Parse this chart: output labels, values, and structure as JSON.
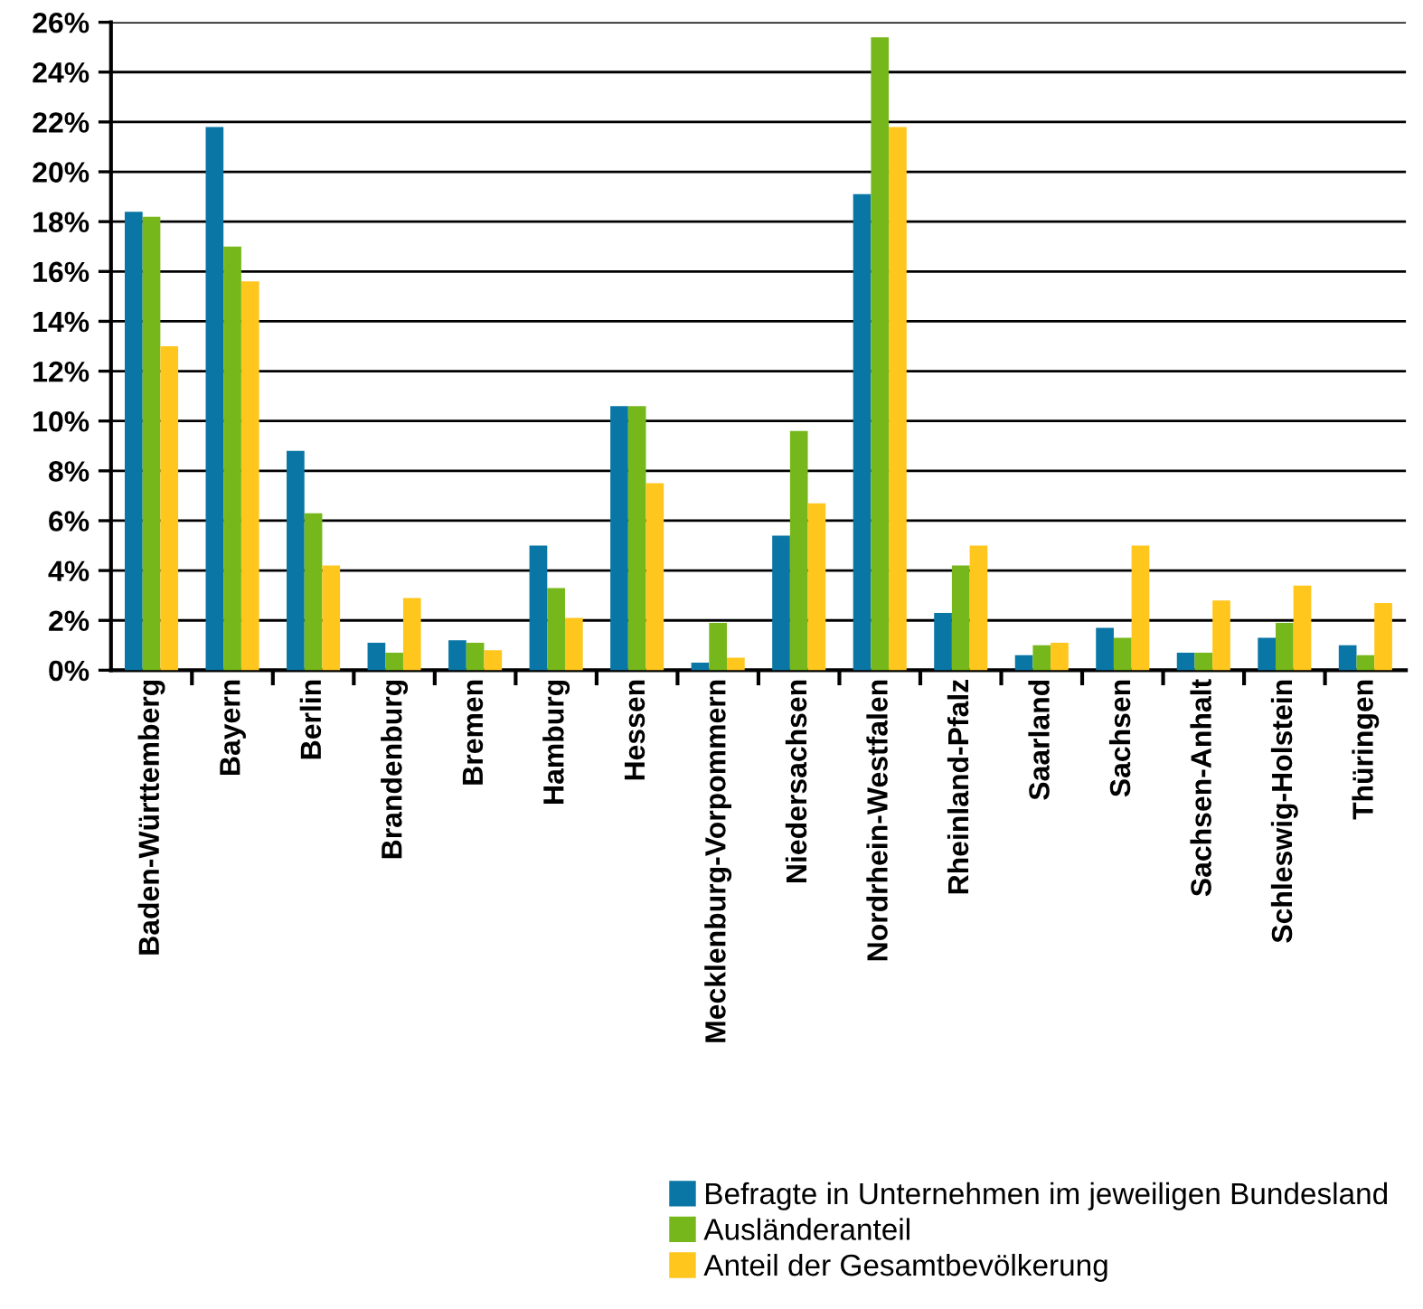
{
  "chart_data": {
    "type": "bar",
    "categories": [
      "Baden-Württemberg",
      "Bayern",
      "Berlin",
      "Brandenburg",
      "Bremen",
      "Hamburg",
      "Hessen",
      "Mecklenburg-Vorpommern",
      "Niedersachsen",
      "Nordrhein-Westfalen",
      "Rheinland-Pfalz",
      "Saarland",
      "Sachsen",
      "Sachsen-Anhalt",
      "Schleswig-Holstein",
      "Thüringen"
    ],
    "series": [
      {
        "name": "Befragte in Unternehmen im jeweiligen Bundesland",
        "color": "#0a76a5",
        "values": [
          18.4,
          21.8,
          8.8,
          1.1,
          1.2,
          5.0,
          10.6,
          0.3,
          5.4,
          19.1,
          2.3,
          0.6,
          1.7,
          0.7,
          1.3,
          1.0
        ]
      },
      {
        "name": "Ausländeranteil",
        "color": "#76b81c",
        "values": [
          18.2,
          17.0,
          6.3,
          0.7,
          1.1,
          3.3,
          10.6,
          1.9,
          9.6,
          25.4,
          4.2,
          1.0,
          1.3,
          0.7,
          1.9,
          0.6
        ]
      },
      {
        "name": "Anteil der Gesamtbevölkerung",
        "color": "#ffc61e",
        "values": [
          13.0,
          15.6,
          4.2,
          2.9,
          0.8,
          2.1,
          7.5,
          0.5,
          6.7,
          21.8,
          5.0,
          1.1,
          5.0,
          2.8,
          3.4,
          2.7
        ]
      }
    ],
    "ylim": [
      0,
      26
    ],
    "yticks": [
      {
        "value": 0,
        "label": "0%"
      },
      {
        "value": 2,
        "label": "2%"
      },
      {
        "value": 4,
        "label": "4%"
      },
      {
        "value": 6,
        "label": "6%"
      },
      {
        "value": 8,
        "label": "8%"
      },
      {
        "value": 10,
        "label": "10%"
      },
      {
        "value": 12,
        "label": "12%"
      },
      {
        "value": 14,
        "label": "14%"
      },
      {
        "value": 16,
        "label": "16%"
      },
      {
        "value": 18,
        "label": "18%"
      },
      {
        "value": 20,
        "label": "20%"
      },
      {
        "value": 22,
        "label": "22%"
      },
      {
        "value": 24,
        "label": "24%"
      },
      {
        "value": 26,
        "label": "26%"
      }
    ],
    "grid": "y",
    "legend": "bottom right"
  }
}
